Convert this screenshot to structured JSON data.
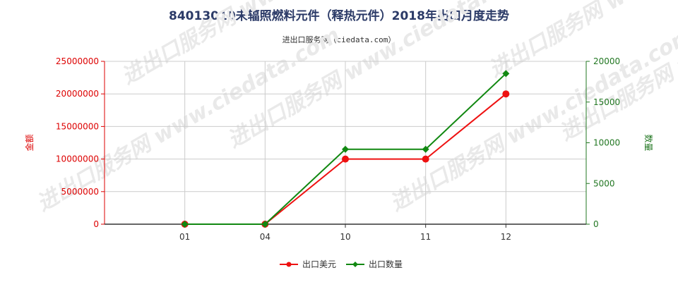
{
  "title": "84013010未辐照燃料元件（释热元件）2018年出口月度走势",
  "subtitle": "进出口服务网（ciedata.com）",
  "watermark": "进出口服务网 www.ciedata.com",
  "colors": {
    "left_axis": "#dd0000",
    "right_axis": "#227722",
    "grid": "#cccccc"
  },
  "chart_data": {
    "type": "line",
    "categories": [
      "01",
      "04",
      "10",
      "11",
      "12"
    ],
    "y_left": {
      "label": "金额",
      "ylim": [
        0,
        25000000
      ],
      "ticks": [
        "0",
        "5000000",
        "10000000",
        "15000000",
        "20000000",
        "25000000"
      ]
    },
    "y_right": {
      "label": "数量",
      "ylim": [
        0,
        20000
      ],
      "ticks": [
        "0",
        "5000",
        "10000",
        "15000",
        "20000"
      ]
    },
    "series": [
      {
        "name": "出口美元",
        "axis": "left",
        "color": "#ee1111",
        "marker": "circle",
        "values": [
          0,
          0,
          10000000,
          10000000,
          20000000
        ]
      },
      {
        "name": "出口数量",
        "axis": "right",
        "color": "#118811",
        "marker": "diamond",
        "values": [
          0,
          0,
          9200,
          9200,
          18500
        ]
      }
    ],
    "grid": true,
    "legend_position": "bottom"
  }
}
